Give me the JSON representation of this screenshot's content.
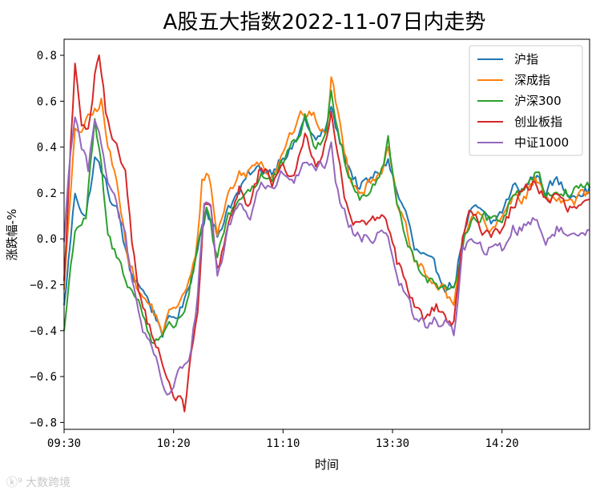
{
  "watermark": "大数跨境",
  "chart_data": {
    "type": "line",
    "title": "A股五大指数2022-11-07日内走势",
    "xlabel": "时间",
    "ylabel": "涨跌幅-%",
    "x_ticks": [
      "09:30",
      "10:20",
      "11:10",
      "13:30",
      "14:20"
    ],
    "x_tick_index": [
      0,
      50,
      100,
      150,
      200
    ],
    "x_count": 241,
    "ylim": [
      -0.83,
      0.87
    ],
    "y_ticks": [
      0.8,
      0.6,
      0.4,
      0.2,
      0.0,
      -0.2,
      -0.4,
      -0.6,
      -0.8
    ],
    "y_tick_labels": [
      "0.8",
      "0.6",
      "0.4",
      "0.2",
      "0.0",
      "−0.2",
      "−0.4",
      "−0.6",
      "−0.8"
    ],
    "legend_position": "top-right",
    "grid": false,
    "series": [
      {
        "name": "沪指",
        "color": "#1f77b4",
        "anchors": [
          [
            0,
            -0.3
          ],
          [
            5,
            0.2
          ],
          [
            10,
            0.1
          ],
          [
            14,
            0.35
          ],
          [
            17,
            0.3
          ],
          [
            20,
            0.2
          ],
          [
            25,
            0.1
          ],
          [
            30,
            -0.15
          ],
          [
            35,
            -0.2
          ],
          [
            40,
            -0.3
          ],
          [
            45,
            -0.4
          ],
          [
            50,
            -0.35
          ],
          [
            55,
            -0.28
          ],
          [
            60,
            -0.08
          ],
          [
            65,
            0.15
          ],
          [
            70,
            0.0
          ],
          [
            75,
            0.15
          ],
          [
            80,
            0.2
          ],
          [
            85,
            0.28
          ],
          [
            90,
            0.3
          ],
          [
            95,
            0.3
          ],
          [
            100,
            0.38
          ],
          [
            105,
            0.4
          ],
          [
            110,
            0.52
          ],
          [
            115,
            0.42
          ],
          [
            120,
            0.48
          ],
          [
            122,
            0.58
          ],
          [
            125,
            0.45
          ],
          [
            130,
            0.32
          ],
          [
            135,
            0.22
          ],
          [
            140,
            0.25
          ],
          [
            145,
            0.3
          ],
          [
            148,
            0.35
          ],
          [
            152,
            0.2
          ],
          [
            157,
            0.08
          ],
          [
            160,
            -0.05
          ],
          [
            165,
            -0.1
          ],
          [
            170,
            -0.15
          ],
          [
            175,
            -0.2
          ],
          [
            178,
            -0.2
          ],
          [
            182,
            0.0
          ],
          [
            185,
            0.1
          ],
          [
            190,
            0.12
          ],
          [
            195,
            0.05
          ],
          [
            200,
            0.12
          ],
          [
            205,
            0.22
          ],
          [
            210,
            0.22
          ],
          [
            215,
            0.28
          ],
          [
            220,
            0.22
          ],
          [
            225,
            0.25
          ],
          [
            230,
            0.2
          ],
          [
            235,
            0.22
          ],
          [
            240,
            0.22
          ]
        ]
      },
      {
        "name": "深成指",
        "color": "#ff7f0e",
        "anchors": [
          [
            0,
            -0.2
          ],
          [
            5,
            0.45
          ],
          [
            10,
            0.5
          ],
          [
            14,
            0.55
          ],
          [
            17,
            0.6
          ],
          [
            20,
            0.4
          ],
          [
            25,
            0.2
          ],
          [
            30,
            -0.1
          ],
          [
            35,
            -0.25
          ],
          [
            40,
            -0.3
          ],
          [
            45,
            -0.4
          ],
          [
            50,
            -0.3
          ],
          [
            55,
            -0.25
          ],
          [
            60,
            -0.1
          ],
          [
            63,
            0.25
          ],
          [
            66,
            0.3
          ],
          [
            70,
            0.02
          ],
          [
            75,
            0.2
          ],
          [
            80,
            0.28
          ],
          [
            85,
            0.3
          ],
          [
            90,
            0.35
          ],
          [
            95,
            0.28
          ],
          [
            100,
            0.4
          ],
          [
            105,
            0.48
          ],
          [
            110,
            0.55
          ],
          [
            115,
            0.52
          ],
          [
            120,
            0.45
          ],
          [
            122,
            0.7
          ],
          [
            125,
            0.55
          ],
          [
            130,
            0.3
          ],
          [
            135,
            0.22
          ],
          [
            140,
            0.25
          ],
          [
            145,
            0.32
          ],
          [
            148,
            0.38
          ],
          [
            152,
            0.15
          ],
          [
            157,
            0.0
          ],
          [
            160,
            -0.1
          ],
          [
            165,
            -0.15
          ],
          [
            170,
            -0.2
          ],
          [
            175,
            -0.25
          ],
          [
            178,
            -0.3
          ],
          [
            182,
            0.0
          ],
          [
            185,
            0.08
          ],
          [
            190,
            0.1
          ],
          [
            195,
            0.02
          ],
          [
            200,
            0.08
          ],
          [
            205,
            0.2
          ],
          [
            210,
            0.18
          ],
          [
            215,
            0.26
          ],
          [
            220,
            0.18
          ],
          [
            225,
            0.2
          ],
          [
            230,
            0.15
          ],
          [
            235,
            0.18
          ],
          [
            240,
            0.18
          ]
        ]
      },
      {
        "name": "沪深300",
        "color": "#2ca02c",
        "anchors": [
          [
            0,
            -0.4
          ],
          [
            5,
            0.05
          ],
          [
            10,
            0.1
          ],
          [
            14,
            0.5
          ],
          [
            17,
            0.3
          ],
          [
            20,
            0.0
          ],
          [
            25,
            -0.1
          ],
          [
            30,
            -0.2
          ],
          [
            35,
            -0.3
          ],
          [
            40,
            -0.45
          ],
          [
            45,
            -0.4
          ],
          [
            50,
            -0.38
          ],
          [
            55,
            -0.3
          ],
          [
            60,
            -0.1
          ],
          [
            65,
            0.12
          ],
          [
            70,
            -0.1
          ],
          [
            75,
            0.1
          ],
          [
            80,
            0.18
          ],
          [
            85,
            0.22
          ],
          [
            90,
            0.28
          ],
          [
            95,
            0.25
          ],
          [
            100,
            0.32
          ],
          [
            105,
            0.4
          ],
          [
            110,
            0.52
          ],
          [
            115,
            0.4
          ],
          [
            120,
            0.45
          ],
          [
            122,
            0.65
          ],
          [
            125,
            0.5
          ],
          [
            130,
            0.28
          ],
          [
            135,
            0.2
          ],
          [
            140,
            0.22
          ],
          [
            145,
            0.3
          ],
          [
            148,
            0.42
          ],
          [
            152,
            0.15
          ],
          [
            157,
            0.0
          ],
          [
            160,
            -0.1
          ],
          [
            165,
            -0.15
          ],
          [
            170,
            -0.2
          ],
          [
            175,
            -0.25
          ],
          [
            178,
            -0.25
          ],
          [
            182,
            0.0
          ],
          [
            185,
            0.08
          ],
          [
            190,
            0.1
          ],
          [
            195,
            0.08
          ],
          [
            200,
            0.1
          ],
          [
            205,
            0.2
          ],
          [
            210,
            0.22
          ],
          [
            215,
            0.3
          ],
          [
            220,
            0.2
          ],
          [
            225,
            0.22
          ],
          [
            230,
            0.2
          ],
          [
            235,
            0.23
          ],
          [
            240,
            0.23
          ]
        ]
      },
      {
        "name": "创业板指",
        "color": "#d62728",
        "anchors": [
          [
            0,
            -0.2
          ],
          [
            3,
            0.4
          ],
          [
            5,
            0.75
          ],
          [
            8,
            0.5
          ],
          [
            11,
            0.45
          ],
          [
            14,
            0.7
          ],
          [
            16,
            0.78
          ],
          [
            19,
            0.55
          ],
          [
            22,
            0.4
          ],
          [
            25,
            0.35
          ],
          [
            28,
            0.3
          ],
          [
            31,
            0.0
          ],
          [
            35,
            -0.25
          ],
          [
            38,
            -0.35
          ],
          [
            42,
            -0.45
          ],
          [
            45,
            -0.55
          ],
          [
            48,
            -0.65
          ],
          [
            52,
            -0.7
          ],
          [
            55,
            -0.75
          ],
          [
            58,
            -0.5
          ],
          [
            61,
            -0.35
          ],
          [
            64,
            0.15
          ],
          [
            67,
            0.1
          ],
          [
            70,
            -0.15
          ],
          [
            75,
            0.05
          ],
          [
            80,
            0.2
          ],
          [
            85,
            0.15
          ],
          [
            90,
            0.32
          ],
          [
            95,
            0.25
          ],
          [
            100,
            0.35
          ],
          [
            105,
            0.25
          ],
          [
            110,
            0.45
          ],
          [
            115,
            0.35
          ],
          [
            120,
            0.42
          ],
          [
            122,
            0.55
          ],
          [
            125,
            0.4
          ],
          [
            130,
            0.1
          ],
          [
            135,
            0.05
          ],
          [
            140,
            0.05
          ],
          [
            145,
            0.1
          ],
          [
            148,
            0.05
          ],
          [
            152,
            -0.1
          ],
          [
            157,
            -0.2
          ],
          [
            160,
            -0.3
          ],
          [
            165,
            -0.35
          ],
          [
            170,
            -0.3
          ],
          [
            175,
            -0.35
          ],
          [
            178,
            -0.38
          ],
          [
            182,
            0.0
          ],
          [
            185,
            0.1
          ],
          [
            190,
            0.05
          ],
          [
            195,
            0.03
          ],
          [
            200,
            0.05
          ],
          [
            205,
            0.15
          ],
          [
            210,
            0.2
          ],
          [
            215,
            0.25
          ],
          [
            220,
            0.18
          ],
          [
            225,
            0.18
          ],
          [
            230,
            0.12
          ],
          [
            235,
            0.14
          ],
          [
            240,
            0.14
          ]
        ]
      },
      {
        "name": "中证1000",
        "color": "#9467bd",
        "anchors": [
          [
            0,
            0.0
          ],
          [
            3,
            0.4
          ],
          [
            5,
            0.55
          ],
          [
            8,
            0.4
          ],
          [
            11,
            0.3
          ],
          [
            14,
            0.55
          ],
          [
            16,
            0.5
          ],
          [
            19,
            0.3
          ],
          [
            22,
            0.2
          ],
          [
            25,
            0.1
          ],
          [
            28,
            0.0
          ],
          [
            31,
            -0.2
          ],
          [
            35,
            -0.35
          ],
          [
            38,
            -0.45
          ],
          [
            42,
            -0.55
          ],
          [
            45,
            -0.65
          ],
          [
            48,
            -0.7
          ],
          [
            52,
            -0.55
          ],
          [
            55,
            -0.55
          ],
          [
            58,
            -0.5
          ],
          [
            61,
            -0.25
          ],
          [
            64,
            0.15
          ],
          [
            67,
            0.1
          ],
          [
            70,
            -0.15
          ],
          [
            75,
            0.05
          ],
          [
            80,
            0.15
          ],
          [
            85,
            0.1
          ],
          [
            90,
            0.25
          ],
          [
            95,
            0.2
          ],
          [
            100,
            0.28
          ],
          [
            105,
            0.25
          ],
          [
            110,
            0.32
          ],
          [
            115,
            0.28
          ],
          [
            120,
            0.32
          ],
          [
            122,
            0.38
          ],
          [
            125,
            0.2
          ],
          [
            130,
            0.05
          ],
          [
            135,
            0.0
          ],
          [
            140,
            0.0
          ],
          [
            145,
            0.05
          ],
          [
            148,
            0.02
          ],
          [
            152,
            -0.15
          ],
          [
            157,
            -0.28
          ],
          [
            160,
            -0.35
          ],
          [
            165,
            -0.38
          ],
          [
            170,
            -0.35
          ],
          [
            175,
            -0.38
          ],
          [
            178,
            -0.42
          ],
          [
            182,
            -0.05
          ],
          [
            185,
            0.0
          ],
          [
            190,
            -0.05
          ],
          [
            195,
            -0.05
          ],
          [
            200,
            -0.05
          ],
          [
            205,
            0.05
          ],
          [
            210,
            0.05
          ],
          [
            215,
            0.1
          ],
          [
            220,
            0.0
          ],
          [
            225,
            0.05
          ],
          [
            230,
            0.0
          ],
          [
            235,
            0.05
          ],
          [
            240,
            0.05
          ]
        ]
      }
    ]
  }
}
